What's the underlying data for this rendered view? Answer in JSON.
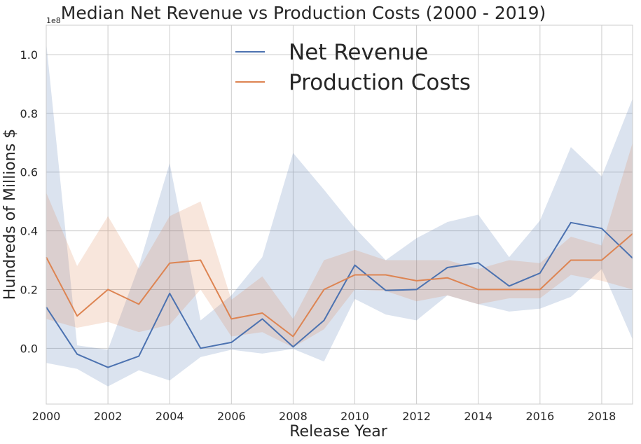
{
  "chart_data": {
    "type": "line",
    "title": "Median Net Revenue vs Production Costs (2000 - 2019)",
    "xlabel": "Release Year",
    "ylabel": "Hundreds of Millions $",
    "y_offset_label": "1e8",
    "xlim": [
      2000,
      2019
    ],
    "ylim": [
      -0.19,
      1.1
    ],
    "x_ticks": [
      2000,
      2002,
      2004,
      2006,
      2008,
      2010,
      2012,
      2014,
      2016,
      2018
    ],
    "y_ticks": [
      0.0,
      0.2,
      0.4,
      0.6,
      0.8,
      1.0
    ],
    "y_tick_labels": [
      "0.0",
      "0.2",
      "0.4",
      "0.6",
      "0.8",
      "1.0"
    ],
    "grid": true,
    "legend_position": "top-center",
    "x": [
      2000,
      2001,
      2002,
      2003,
      2004,
      2005,
      2006,
      2007,
      2008,
      2009,
      2010,
      2011,
      2012,
      2013,
      2014,
      2015,
      2016,
      2017,
      2018,
      2019
    ],
    "series": [
      {
        "name": "Net Revenue",
        "color": "#4c72b0",
        "values": [
          0.14,
          -0.02,
          -0.065,
          -0.027,
          0.187,
          0.0,
          0.02,
          0.1,
          0.005,
          0.095,
          0.283,
          0.197,
          0.2,
          0.275,
          0.291,
          0.212,
          0.256,
          0.428,
          0.408,
          0.307
        ],
        "ci_lower": [
          -0.05,
          -0.07,
          -0.13,
          -0.075,
          -0.11,
          -0.03,
          -0.005,
          -0.018,
          -0.002,
          -0.045,
          0.168,
          0.115,
          0.095,
          0.18,
          0.15,
          0.125,
          0.135,
          0.175,
          0.27,
          0.03
        ],
        "ci_upper": [
          1.04,
          0.01,
          -0.005,
          0.28,
          0.63,
          0.095,
          0.18,
          0.31,
          0.665,
          0.54,
          0.41,
          0.3,
          0.375,
          0.43,
          0.455,
          0.31,
          0.435,
          0.685,
          0.585,
          0.85
        ]
      },
      {
        "name": "Production Costs",
        "color": "#dd8452",
        "values": [
          0.31,
          0.11,
          0.2,
          0.15,
          0.29,
          0.3,
          0.1,
          0.12,
          0.04,
          0.2,
          0.25,
          0.25,
          0.23,
          0.24,
          0.2,
          0.2,
          0.2,
          0.3,
          0.3,
          0.39
        ],
        "ci_lower": [
          0.1,
          0.07,
          0.09,
          0.055,
          0.08,
          0.2,
          0.04,
          0.055,
          0.003,
          0.065,
          0.2,
          0.195,
          0.16,
          0.18,
          0.15,
          0.17,
          0.17,
          0.25,
          0.23,
          0.2
        ],
        "ci_upper": [
          0.53,
          0.28,
          0.45,
          0.27,
          0.45,
          0.5,
          0.165,
          0.245,
          0.1,
          0.3,
          0.335,
          0.3,
          0.3,
          0.3,
          0.27,
          0.3,
          0.29,
          0.38,
          0.35,
          0.7
        ]
      }
    ]
  }
}
